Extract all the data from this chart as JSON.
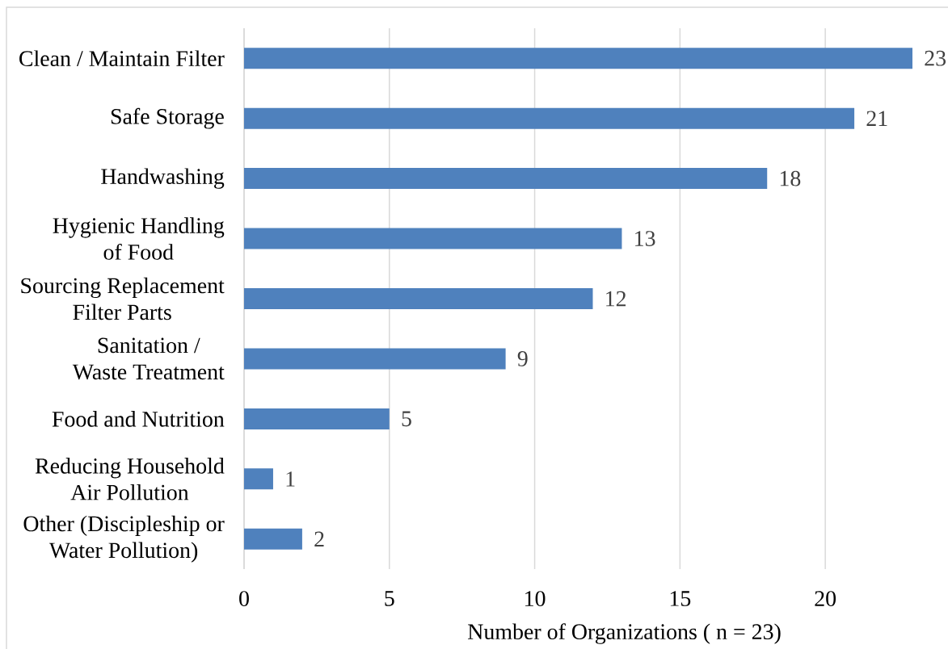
{
  "chart_data": {
    "type": "bar",
    "orientation": "horizontal",
    "categories": [
      "Clean / Maintain Filter",
      "Safe Storage",
      "Handwashing",
      "Hygienic Handling\nof Food",
      "Sourcing Replacement\nFilter Parts",
      "Sanitation /\nWaste Treatment",
      "Food and Nutrition",
      "Reducing Household\nAir Pollution",
      "Other (Discipleship or\nWater Pollution)"
    ],
    "values": [
      23,
      21,
      18,
      13,
      12,
      9,
      5,
      1,
      2
    ],
    "color": "#4f81bd",
    "xlabel": "Number of Organizations ( n = 23)",
    "xlim": [
      0,
      23
    ],
    "xticks": [
      0,
      5,
      10,
      15,
      20
    ],
    "grid": "x",
    "data_labels": true
  }
}
